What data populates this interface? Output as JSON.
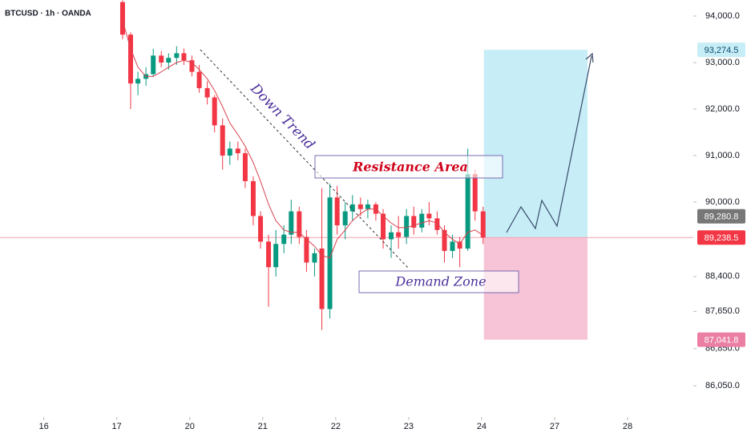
{
  "chart_data": {
    "type": "candlestick",
    "header": "BTCUSD · 1h · OANDA",
    "xlim": [
      -0.6,
      8.9
    ],
    "xticks": [
      {
        "value": 0,
        "label": "16"
      },
      {
        "value": 1,
        "label": "17"
      },
      {
        "value": 2,
        "label": "20"
      },
      {
        "value": 3,
        "label": "21"
      },
      {
        "value": 4,
        "label": "22"
      },
      {
        "value": 5,
        "label": "23"
      },
      {
        "value": 6,
        "label": "24"
      },
      {
        "value": 7,
        "label": "27"
      },
      {
        "value": 8,
        "label": "28"
      }
    ],
    "ylim": [
      85380,
      94345
    ],
    "yticks": [
      {
        "value": 94000,
        "label": "94,000.0"
      },
      {
        "value": 93000,
        "label": "93,000.0"
      },
      {
        "value": 92000,
        "label": "92,000.0"
      },
      {
        "value": 91000,
        "label": "91,000.0"
      },
      {
        "value": 90000,
        "label": "90,000.0"
      },
      {
        "value": 88400,
        "label": "88,400.0"
      },
      {
        "value": 87650,
        "label": "87,650.0"
      },
      {
        "value": 86850,
        "label": "86,850.0"
      },
      {
        "value": 86050,
        "label": "86,050.0"
      }
    ],
    "up_color": "#089981",
    "down_color": "#f23645",
    "ma_color": "#d9434f",
    "x": [
      1.08,
      1.19,
      1.29,
      1.4,
      1.5,
      1.61,
      1.71,
      1.82,
      1.92,
      2.03,
      2.13,
      2.24,
      2.34,
      2.45,
      2.55,
      2.66,
      2.76,
      2.87,
      2.97,
      3.08,
      3.18,
      3.29,
      3.39,
      3.5,
      3.6,
      3.71,
      3.81,
      3.92,
      4.02,
      4.13,
      4.23,
      4.34,
      4.44,
      4.55,
      4.65,
      4.76,
      4.86,
      4.97,
      5.07,
      5.18,
      5.28,
      5.39,
      5.49,
      5.6,
      5.7,
      5.81,
      5.91,
      6.02
    ],
    "open": [
      94300,
      93600,
      92550,
      92650,
      92750,
      93150,
      93000,
      93100,
      93200,
      93050,
      92800,
      92450,
      92250,
      91650,
      91000,
      91150,
      91050,
      90450,
      89700,
      89150,
      88600,
      89100,
      89300,
      89800,
      89250,
      88700,
      89000,
      87700,
      90100,
      89500,
      89800,
      89950,
      89850,
      89950,
      89750,
      89200,
      89350,
      89250,
      89700,
      89450,
      89750,
      89650,
      89400,
      88950,
      89150,
      89000,
      90600,
      89800
    ],
    "high": [
      94340,
      93650,
      92800,
      92900,
      93300,
      93250,
      93200,
      93350,
      93300,
      93150,
      92950,
      92600,
      92300,
      91800,
      91300,
      91300,
      91150,
      90550,
      89800,
      89300,
      89400,
      89500,
      90050,
      89900,
      89400,
      89000,
      90300,
      90400,
      90350,
      90000,
      90150,
      90100,
      90050,
      90000,
      89850,
      89500,
      89700,
      89850,
      89900,
      89850,
      90000,
      89800,
      89500,
      89300,
      89250,
      91150,
      90700,
      89900
    ],
    "low": [
      93500,
      92000,
      92300,
      92500,
      92700,
      92900,
      92850,
      92950,
      92950,
      92700,
      92350,
      92100,
      91500,
      90700,
      90800,
      90900,
      90300,
      89500,
      89000,
      87750,
      88400,
      88900,
      89100,
      89100,
      88500,
      88400,
      87250,
      87500,
      89300,
      89200,
      89600,
      89700,
      89650,
      89600,
      89000,
      88800,
      89000,
      89100,
      89300,
      89350,
      89500,
      89300,
      88700,
      88800,
      88600,
      88950,
      89600,
      89100
    ],
    "close": [
      93600,
      92550,
      92650,
      92750,
      93150,
      93000,
      93100,
      93200,
      93050,
      92800,
      92450,
      92250,
      91650,
      91000,
      91150,
      91050,
      90450,
      89700,
      89150,
      88600,
      89100,
      89300,
      89800,
      89250,
      88700,
      88900,
      87700,
      90100,
      89500,
      89800,
      89950,
      89850,
      89950,
      89750,
      89200,
      89350,
      89250,
      89700,
      89450,
      89750,
      89650,
      89400,
      88950,
      89150,
      89000,
      90600,
      89800,
      89238.5
    ],
    "close_label": "89,238.5",
    "ma_values": [
      93900,
      93300,
      92900,
      92700,
      92700,
      92800,
      92900,
      93000,
      93050,
      93000,
      92850,
      92650,
      92400,
      92050,
      91700,
      91450,
      91200,
      90850,
      90450,
      89950,
      89600,
      89400,
      89350,
      89350,
      89200,
      89050,
      88850,
      88800,
      89200,
      89400,
      89600,
      89750,
      89850,
      89850,
      89700,
      89550,
      89450,
      89450,
      89500,
      89550,
      89600,
      89550,
      89350,
      89200,
      89100,
      89350,
      89400,
      89280.8
    ],
    "ma_label": "89,280.8",
    "position": {
      "xlim": [
        6.03,
        7.45
      ],
      "target": {
        "value": 93274.5,
        "label": "93,274.5"
      },
      "stop": {
        "value": 87041.8,
        "label": "87,041.8"
      }
    },
    "annotations": {
      "trend": "Down Trend",
      "resistance": "Resistance Area",
      "demand": "Demand Zone"
    }
  }
}
